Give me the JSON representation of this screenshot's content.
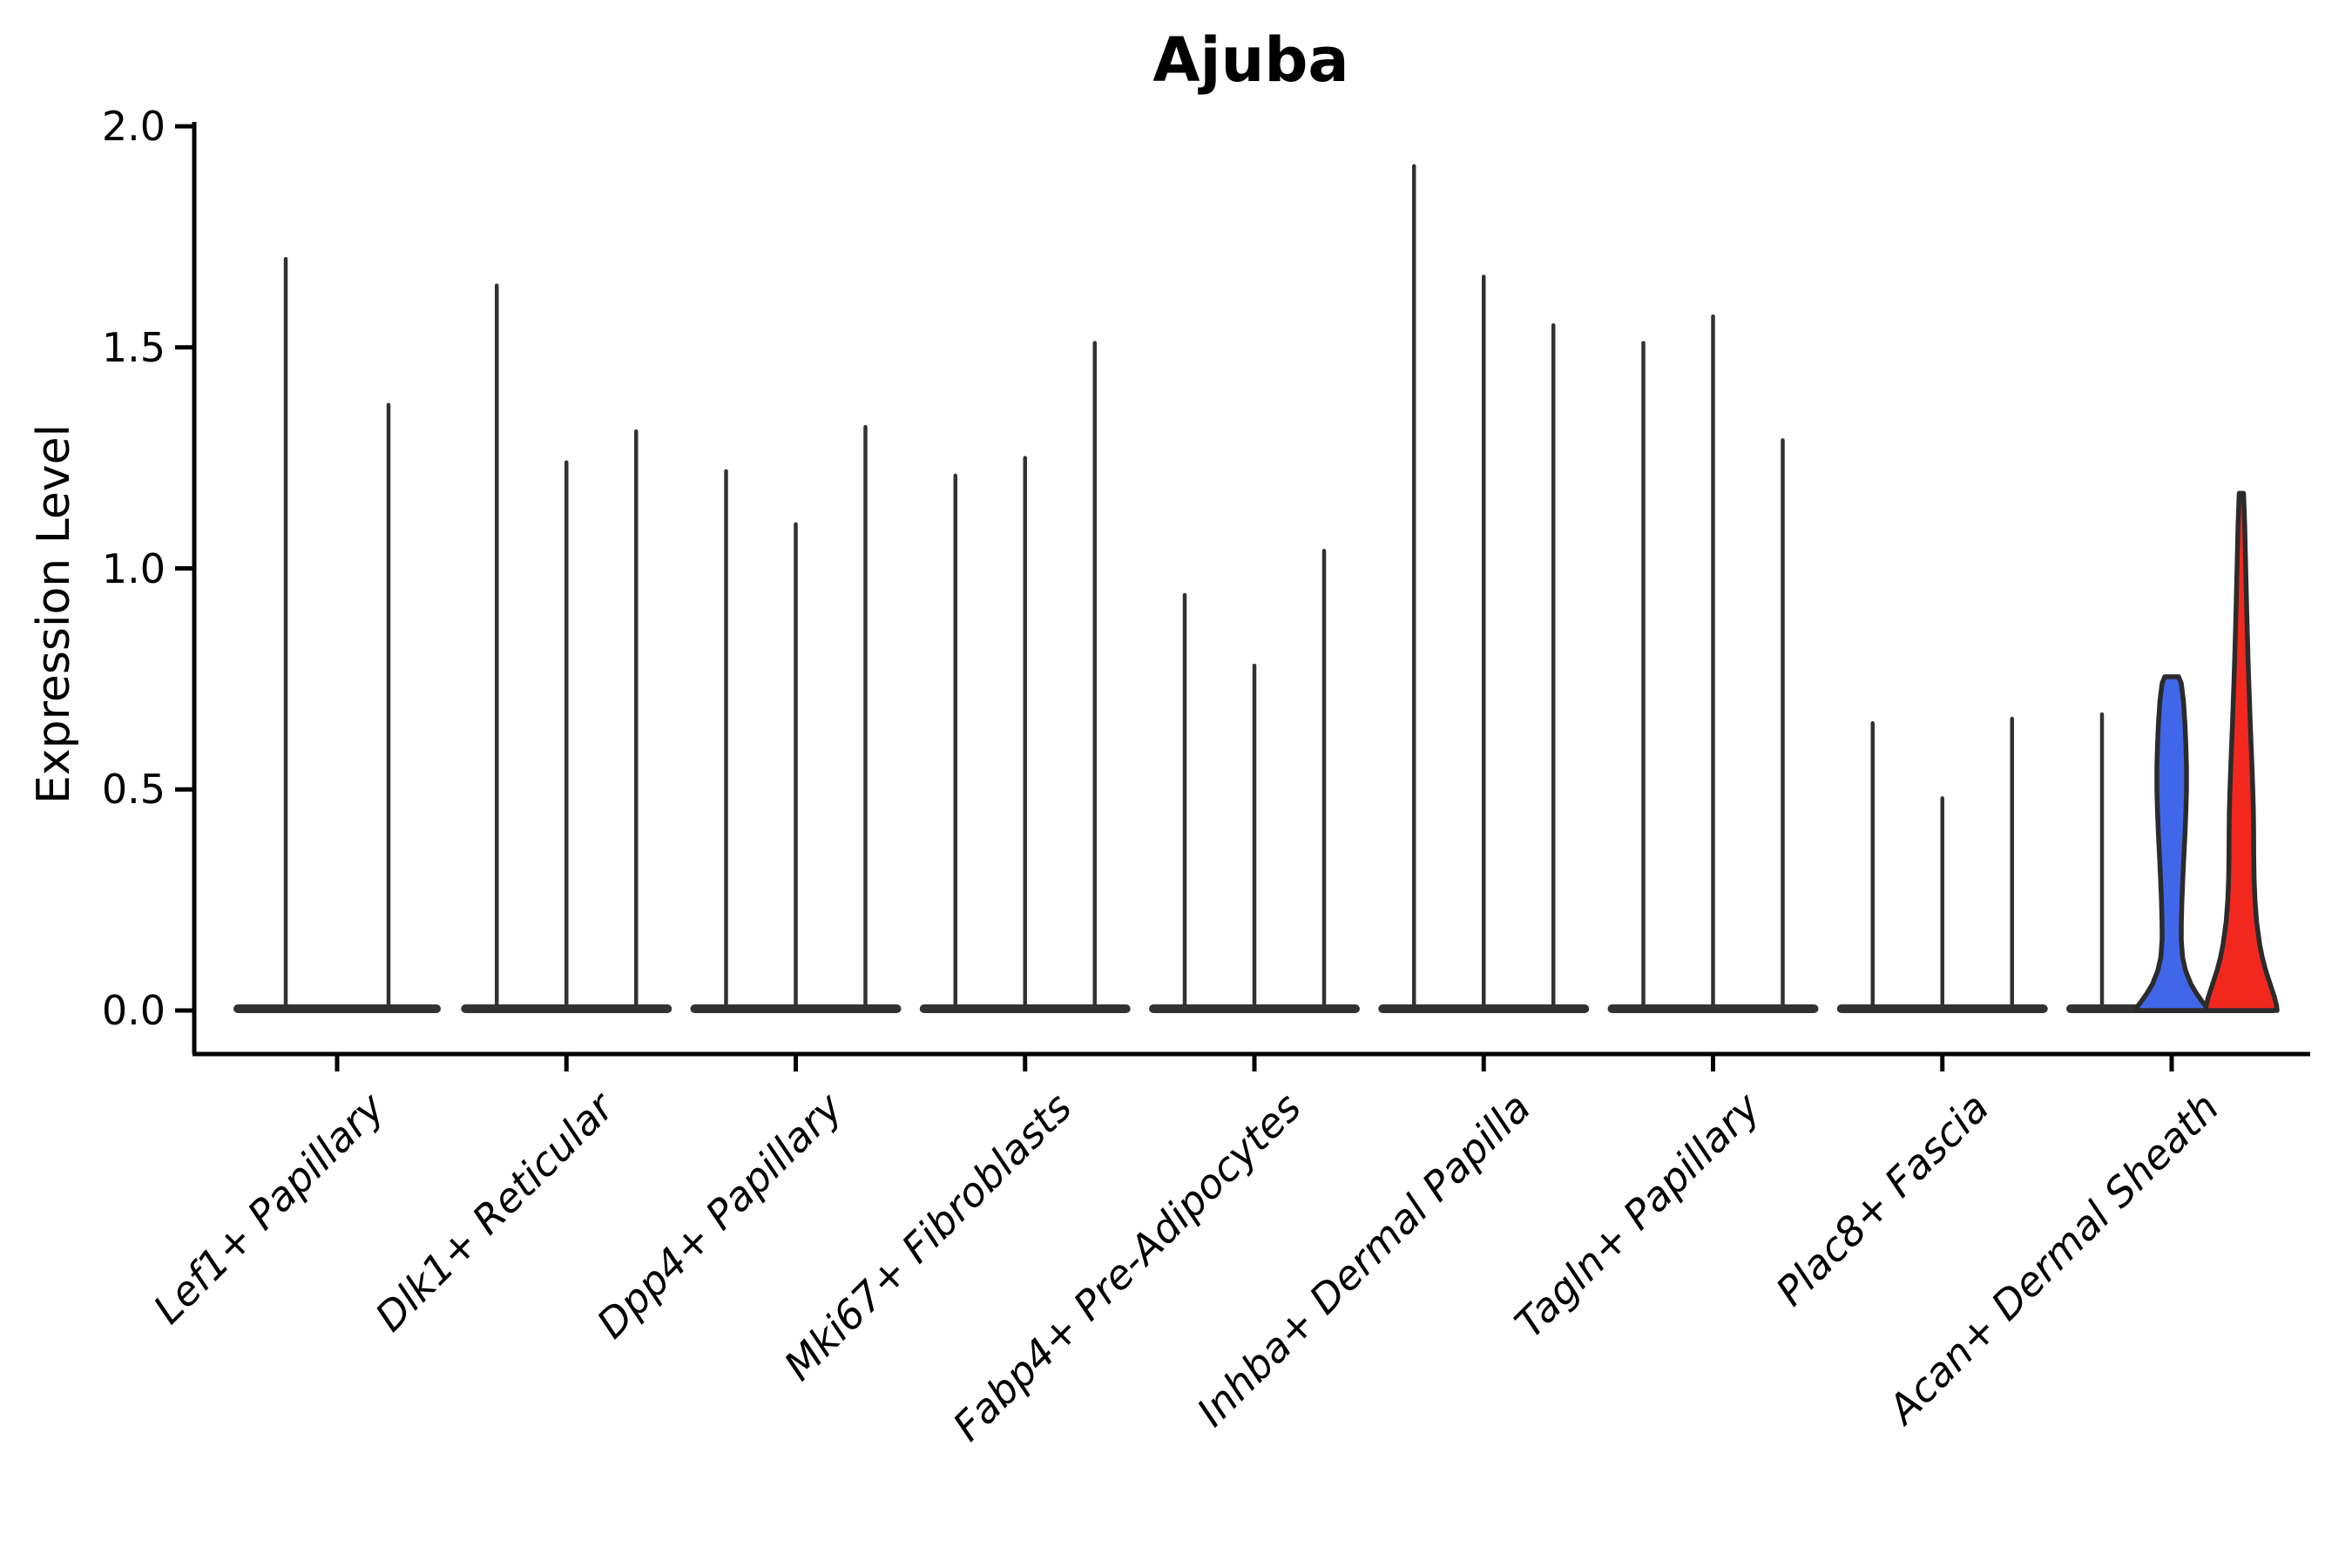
{
  "title": "Ajuba",
  "colors": {
    "blue_violin": "#4066EA",
    "red_violin": "#F2281E",
    "violin_dark": "#323232",
    "outline": "#2B2B2B",
    "axis": "#000000"
  },
  "chart_data": {
    "type": "violin",
    "title": "Ajuba",
    "xlabel": "",
    "ylabel": "Expression Level",
    "ylim": [
      0.0,
      2.0
    ],
    "yticks": [
      0.0,
      0.5,
      1.0,
      1.5,
      2.0
    ],
    "ytick_labels": [
      "0.0",
      "0.5",
      "1.0",
      "1.5",
      "2.0"
    ],
    "legend": "none",
    "grid": false,
    "categories": [
      "Lef1+ Papillary",
      "Dlk1+ Reticular",
      "Dpp4+ Papillary",
      "Mki67+ Fibroblasts",
      "Fabp4+ Pre-Adipocytes",
      "Inhba+ Dermal Papilla",
      "Tagln+ Papillary",
      "Plac8+ Fascia",
      "Acan+ Dermal Sheath"
    ],
    "groups": [
      {
        "label": "Lef1+ Papillary",
        "violins": [
          {
            "style": "spike",
            "max": 1.7
          },
          {
            "style": "spike",
            "max": 1.37
          }
        ]
      },
      {
        "label": "Dlk1+ Reticular",
        "violins": [
          {
            "style": "spike",
            "max": 1.64
          },
          {
            "style": "spike",
            "max": 1.24
          },
          {
            "style": "spike",
            "max": 1.31
          }
        ]
      },
      {
        "label": "Dpp4+ Papillary",
        "violins": [
          {
            "style": "spike",
            "max": 1.22
          },
          {
            "style": "spike",
            "max": 1.1
          },
          {
            "style": "spike",
            "max": 1.32
          }
        ]
      },
      {
        "label": "Mki67+ Fibroblasts",
        "violins": [
          {
            "style": "spike",
            "max": 1.21
          },
          {
            "style": "spike",
            "max": 1.25
          },
          {
            "style": "spike",
            "max": 1.51
          }
        ]
      },
      {
        "label": "Fabp4+ Pre-Adipocytes",
        "violins": [
          {
            "style": "spike",
            "max": 0.94
          },
          {
            "style": "spike",
            "max": 0.78
          },
          {
            "style": "spike",
            "max": 1.04
          }
        ]
      },
      {
        "label": "Inhba+ Dermal Papilla",
        "violins": [
          {
            "style": "spike",
            "max": 1.91
          },
          {
            "style": "spike",
            "max": 1.66
          },
          {
            "style": "spike",
            "max": 1.55
          }
        ]
      },
      {
        "label": "Tagln+ Papillary",
        "violins": [
          {
            "style": "spike",
            "max": 1.51
          },
          {
            "style": "spike",
            "max": 1.57
          },
          {
            "style": "spike",
            "max": 1.29
          }
        ]
      },
      {
        "label": "Plac8+ Fascia",
        "violins": [
          {
            "style": "spike",
            "max": 0.65
          },
          {
            "style": "spike",
            "max": 0.48
          },
          {
            "style": "spike",
            "max": 0.66
          }
        ]
      },
      {
        "label": "Acan+ Dermal Sheath",
        "violins": [
          {
            "style": "spike",
            "max": 0.67
          },
          {
            "style": "shape",
            "max": 0.755,
            "color": "#4066EA",
            "profile": [
              [
                0.755,
                8
              ],
              [
                0.74,
                11
              ],
              [
                0.7,
                13.5
              ],
              [
                0.65,
                15.2
              ],
              [
                0.6,
                16.3
              ],
              [
                0.55,
                17.0
              ],
              [
                0.5,
                17.0
              ],
              [
                0.45,
                16.3
              ],
              [
                0.4,
                15.3
              ],
              [
                0.35,
                14.0
              ],
              [
                0.3,
                12.8
              ],
              [
                0.25,
                11.8
              ],
              [
                0.2,
                11.1
              ],
              [
                0.16,
                11.0
              ],
              [
                0.12,
                12.5
              ],
              [
                0.09,
                16
              ],
              [
                0.06,
                22
              ],
              [
                0.04,
                28
              ],
              [
                0.02,
                35
              ],
              [
                0.01,
                39
              ],
              [
                0.0,
                41
              ]
            ]
          },
          {
            "style": "shape",
            "max": 1.17,
            "color": "#F2281E",
            "profile": [
              [
                1.17,
                2.5
              ],
              [
                1.1,
                3.8
              ],
              [
                1.05,
                4.4
              ],
              [
                1.0,
                5.0
              ],
              [
                0.95,
                5.6
              ],
              [
                0.9,
                6.2
              ],
              [
                0.85,
                6.9
              ],
              [
                0.8,
                7.6
              ],
              [
                0.75,
                8.4
              ],
              [
                0.7,
                9.3
              ],
              [
                0.65,
                10.2
              ],
              [
                0.6,
                11.2
              ],
              [
                0.55,
                12.2
              ],
              [
                0.5,
                13.1
              ],
              [
                0.45,
                13.8
              ],
              [
                0.4,
                14.1
              ],
              [
                0.35,
                14.2
              ],
              [
                0.3,
                14.6
              ],
              [
                0.25,
                15.6
              ],
              [
                0.2,
                17.5
              ],
              [
                0.15,
                21
              ],
              [
                0.12,
                24
              ],
              [
                0.09,
                28
              ],
              [
                0.06,
                33
              ],
              [
                0.03,
                38
              ],
              [
                0.01,
                40.5
              ],
              [
                0.0,
                41
              ]
            ]
          }
        ]
      }
    ]
  }
}
